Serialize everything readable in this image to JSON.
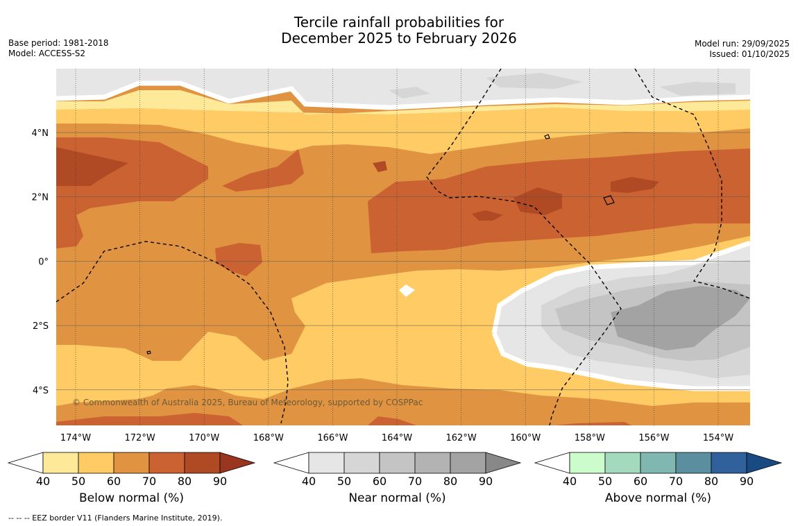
{
  "header": {
    "title_line1": "Tercile rainfall probabilities for",
    "title_line2": "December 2025 to February 2026",
    "base_period": "Base period: 1981-2018",
    "model": "Model: ACCESS-S2",
    "model_run": "Model run: 29/09/2025",
    "issued": "Issued: 01/10/2025"
  },
  "map": {
    "lon_labels": [
      "174°W",
      "172°W",
      "170°W",
      "168°W",
      "166°W",
      "164°W",
      "162°W",
      "160°W",
      "158°W",
      "156°W",
      "154°W"
    ],
    "lat_labels": [
      "4°N",
      "2°N",
      "0°",
      "2°S",
      "4°S"
    ],
    "copyright": "© Commonwealth of Australia 2025, Bureau of Meteorology, supported by COSPPac",
    "colors": {
      "below_50": "#fee999",
      "below_60": "#fecb64",
      "below_70": "#e09341",
      "below_80": "#cb6232",
      "below_90": "#b04a25",
      "near_40": "#e6e6e6",
      "near_50": "#d6d6d6",
      "near_60": "#c4c4c4",
      "near_70": "#b3b3b3",
      "near_80": "#a3a3a3"
    }
  },
  "colorbars": [
    {
      "label": "Below normal (%)",
      "ticks": [
        "40",
        "50",
        "60",
        "70",
        "80",
        "90"
      ],
      "colors": [
        "#fee999",
        "#fecb64",
        "#e09341",
        "#cb6232",
        "#b04a25"
      ],
      "over": "#9a3520"
    },
    {
      "label": "Near normal (%)",
      "ticks": [
        "40",
        "50",
        "60",
        "70",
        "80",
        "90"
      ],
      "colors": [
        "#e6e6e6",
        "#d6d6d6",
        "#c4c4c4",
        "#b3b3b3",
        "#a3a3a3"
      ],
      "over": "#888888"
    },
    {
      "label": "Above normal (%)",
      "ticks": [
        "40",
        "50",
        "60",
        "70",
        "80",
        "90"
      ],
      "colors": [
        "#ccfccc",
        "#a3dabd",
        "#80b7b0",
        "#5b8fa0",
        "#30619b"
      ],
      "over": "#1a4a82"
    }
  ],
  "footer": "--  --  -- EEZ border V11 (Flanders Marine Institute, 2019)."
}
